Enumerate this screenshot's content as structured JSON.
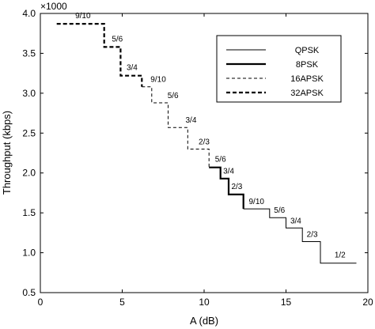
{
  "chart_data": {
    "type": "line",
    "xlabel": "A (dB)",
    "ylabel": "Throughput (kbps)",
    "y_multiplier": "×1000",
    "xlim": [
      0,
      20
    ],
    "ylim": [
      0.5,
      4.0
    ],
    "xticks": [
      0,
      5,
      10,
      15,
      20
    ],
    "yticks": [
      0.5,
      1.0,
      1.5,
      2.0,
      2.5,
      3.0,
      3.5,
      4.0
    ],
    "grid": false,
    "legend_position": "top-right",
    "series": [
      {
        "name": "QPSK",
        "style": "thin-solid",
        "points": [
          [
            12.4,
            1.55
          ],
          [
            14.0,
            1.55
          ],
          [
            14.0,
            1.44
          ],
          [
            15.0,
            1.44
          ],
          [
            15.0,
            1.31
          ],
          [
            16.0,
            1.31
          ],
          [
            16.0,
            1.14
          ],
          [
            17.1,
            1.14
          ],
          [
            17.1,
            0.87
          ],
          [
            19.3,
            0.87
          ]
        ]
      },
      {
        "name": "8PSK",
        "style": "thick-solid",
        "points": [
          [
            10.3,
            2.07
          ],
          [
            11.0,
            2.07
          ],
          [
            11.0,
            1.93
          ],
          [
            11.5,
            1.93
          ],
          [
            11.5,
            1.73
          ],
          [
            12.4,
            1.73
          ],
          [
            12.4,
            1.55
          ]
        ]
      },
      {
        "name": "16APSK",
        "style": "thin-dashed",
        "points": [
          [
            6.2,
            3.08
          ],
          [
            6.8,
            3.08
          ],
          [
            6.8,
            2.88
          ],
          [
            7.8,
            2.88
          ],
          [
            7.8,
            2.57
          ],
          [
            9.0,
            2.57
          ],
          [
            9.0,
            2.3
          ],
          [
            10.3,
            2.3
          ],
          [
            10.3,
            2.07
          ]
        ]
      },
      {
        "name": "32APSK",
        "style": "thick-dashed",
        "points": [
          [
            1.0,
            3.87
          ],
          [
            3.9,
            3.87
          ],
          [
            3.9,
            3.58
          ],
          [
            4.9,
            3.58
          ],
          [
            4.9,
            3.22
          ],
          [
            6.2,
            3.22
          ],
          [
            6.2,
            3.08
          ]
        ]
      }
    ],
    "annotations": [
      {
        "text": "9/10",
        "x": 2.6,
        "y": 3.94
      },
      {
        "text": "5/6",
        "x": 4.7,
        "y": 3.65
      },
      {
        "text": "3/4",
        "x": 5.6,
        "y": 3.29
      },
      {
        "text": "9/10",
        "x": 7.2,
        "y": 3.14
      },
      {
        "text": "5/6",
        "x": 8.1,
        "y": 2.94
      },
      {
        "text": "3/4",
        "x": 9.2,
        "y": 2.63
      },
      {
        "text": "2/3",
        "x": 10.0,
        "y": 2.36
      },
      {
        "text": "5/6",
        "x": 11.0,
        "y": 2.14
      },
      {
        "text": "3/4",
        "x": 11.5,
        "y": 1.99
      },
      {
        "text": "2/3",
        "x": 12.0,
        "y": 1.8
      },
      {
        "text": "9/10",
        "x": 13.2,
        "y": 1.61
      },
      {
        "text": "5/6",
        "x": 14.6,
        "y": 1.5
      },
      {
        "text": "3/4",
        "x": 15.6,
        "y": 1.37
      },
      {
        "text": "2/3",
        "x": 16.6,
        "y": 1.2
      },
      {
        "text": "1/2",
        "x": 18.3,
        "y": 0.94
      }
    ]
  }
}
